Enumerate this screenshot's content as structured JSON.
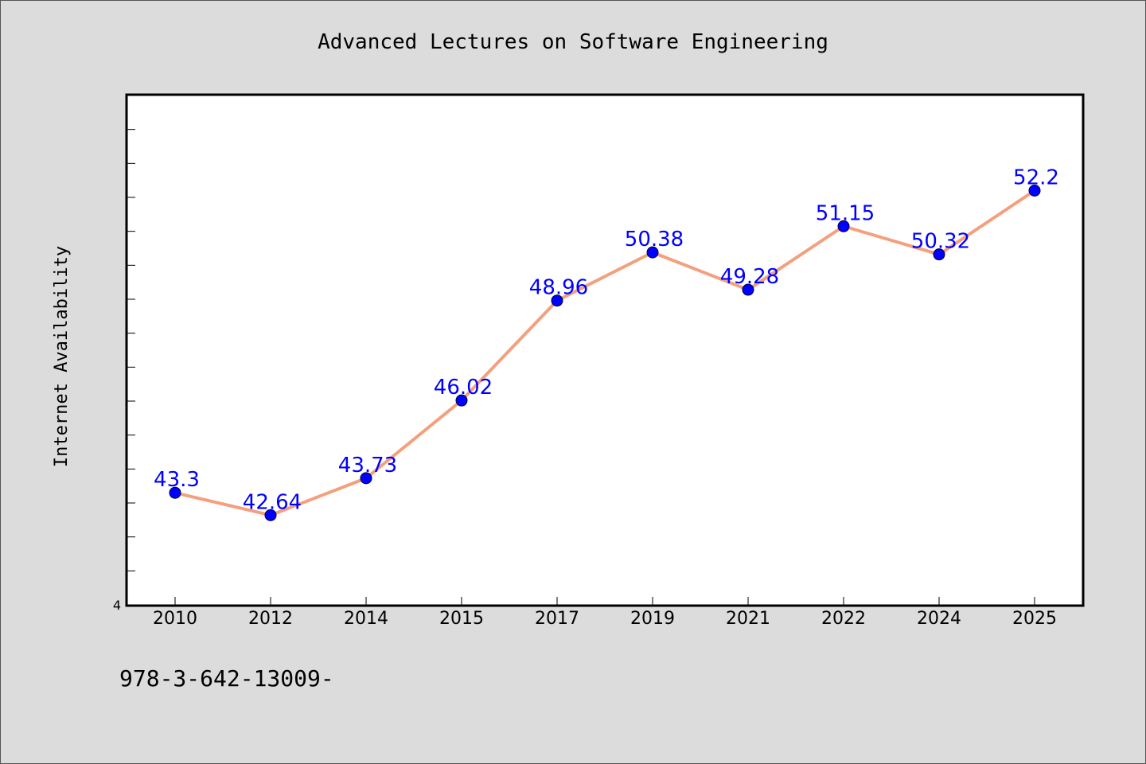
{
  "colors": {
    "background": "#dcdcdc",
    "plot_background": "#ffffff",
    "line": "#f4a07e",
    "marker": "#0000ff",
    "label": "#0000ff"
  },
  "footer": "978-3-642-13009-",
  "chart_data": {
    "type": "line",
    "title": "Advanced Lectures on Software Engineering",
    "xlabel": "",
    "ylabel": "Internet Availability",
    "categories": [
      "2010",
      "2012",
      "2014",
      "2015",
      "2017",
      "2019",
      "2021",
      "2022",
      "2024",
      "2025"
    ],
    "series": [
      {
        "values": [
          43.3,
          42.64,
          43.73,
          46.02,
          48.96,
          50.38,
          49.28,
          51.15,
          50.32,
          52.2
        ],
        "labels": [
          "43.3",
          "42.64",
          "43.73",
          "46.02",
          "48.96",
          "50.38",
          "49.28",
          "51.15",
          "50.32",
          "52.2"
        ]
      }
    ],
    "ylim": [
      40,
      55
    ],
    "yticks_labeled": [
      {
        "value": 40,
        "label": "4"
      }
    ],
    "grid": false,
    "legend": "none"
  }
}
